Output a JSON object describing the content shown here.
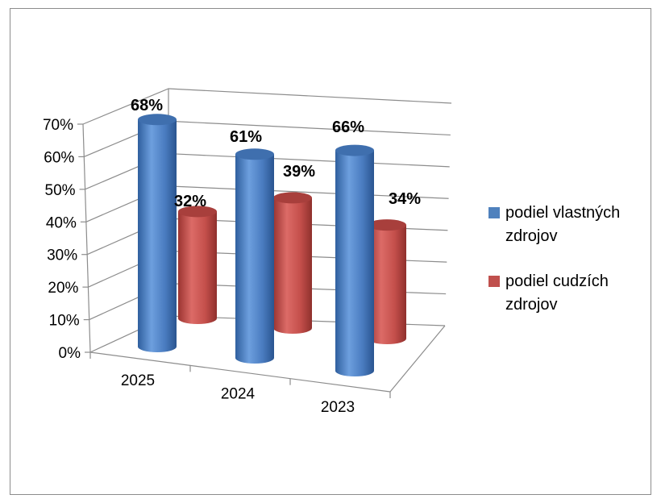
{
  "colors": {
    "own": "#4f81bd",
    "foreign": "#c0504d"
  },
  "chart_data": {
    "type": "bar",
    "style": "3d-cylinder",
    "categories": [
      "2025",
      "2024",
      "2023"
    ],
    "series": [
      {
        "name": "podiel vlastných zdrojov",
        "values": [
          0.68,
          0.61,
          0.66
        ],
        "labels": [
          "68%",
          "61%",
          "66%"
        ],
        "color": "#4f81bd"
      },
      {
        "name": "podiel cudzích zdrojov",
        "values": [
          0.32,
          0.39,
          0.34
        ],
        "labels": [
          "32%",
          "39%",
          "34%"
        ],
        "color": "#c0504d"
      }
    ],
    "yticks": [
      "0%",
      "10%",
      "20%",
      "30%",
      "40%",
      "50%",
      "60%",
      "70%"
    ],
    "ylim": [
      0,
      0.7
    ],
    "grid": true,
    "legend_position": "right"
  },
  "legend": [
    {
      "line1": "podiel vlastných",
      "line2": "zdrojov",
      "color": "#4f81bd"
    },
    {
      "line1": "podiel cudzích",
      "line2": "zdrojov",
      "color": "#c0504d"
    }
  ]
}
